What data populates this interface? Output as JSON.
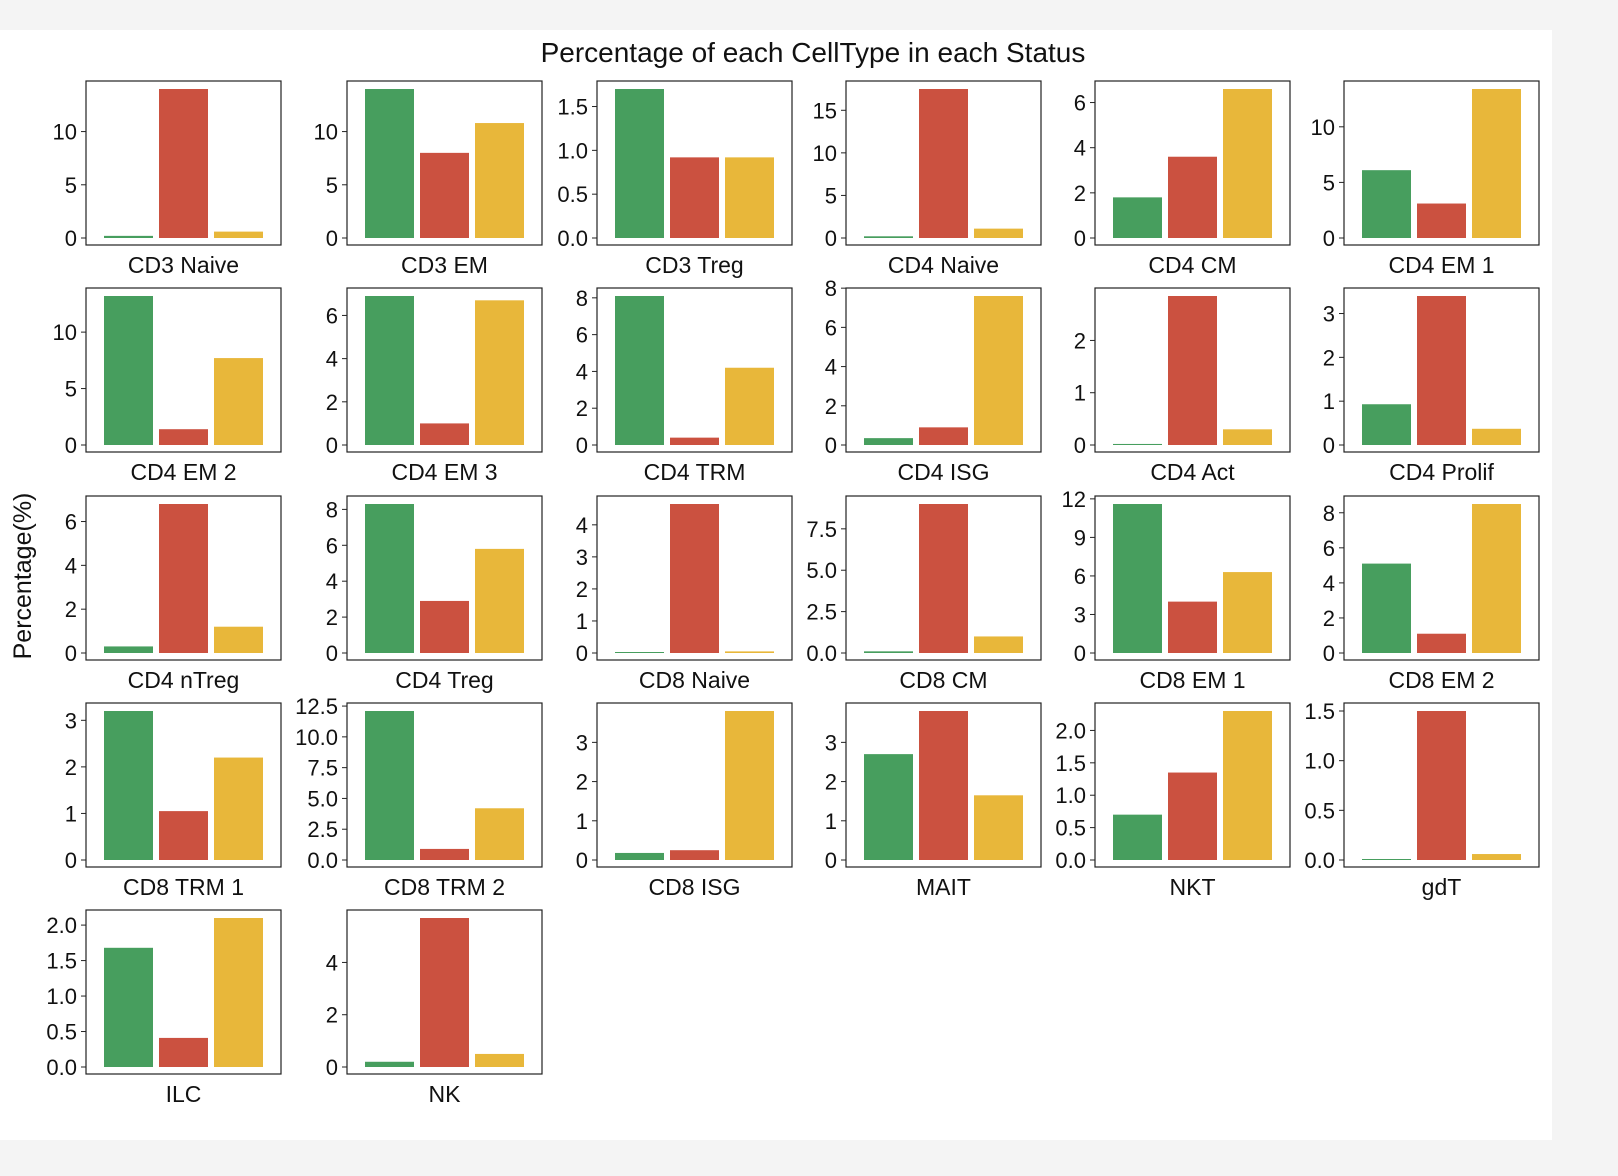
{
  "chart_data": {
    "type": "bar",
    "title": "Percentage of each CellType in each Status",
    "ylabel": "Percentage(%)",
    "series_colors": [
      "#479e5e",
      "#cb5140",
      "#e8b73a"
    ],
    "panels": [
      {
        "label": "CD3 Naive",
        "values": [
          0.2,
          14.0,
          0.6
        ],
        "ylim": [
          0,
          14.0
        ],
        "ticks": [
          "0",
          "5",
          "10"
        ]
      },
      {
        "label": "CD3 EM",
        "values": [
          14.0,
          8.0,
          10.8
        ],
        "ylim": [
          0,
          14.0
        ],
        "ticks": [
          "0",
          "5",
          "10"
        ]
      },
      {
        "label": "CD3 Treg",
        "values": [
          1.7,
          0.92,
          0.92
        ],
        "ylim": [
          0,
          1.7
        ],
        "ticks": [
          "0.0",
          "0.5",
          "1.0",
          "1.5"
        ]
      },
      {
        "label": "CD4 Naive",
        "values": [
          0.2,
          17.5,
          1.1
        ],
        "ylim": [
          0,
          17.5
        ],
        "ticks": [
          "0",
          "5",
          "10",
          "15"
        ]
      },
      {
        "label": "CD4 CM",
        "values": [
          1.8,
          3.6,
          6.6
        ],
        "ylim": [
          0,
          6.6
        ],
        "ticks": [
          "0",
          "2",
          "4",
          "6"
        ]
      },
      {
        "label": "CD4 EM 1",
        "values": [
          6.1,
          3.1,
          13.4
        ],
        "ylim": [
          0,
          13.4
        ],
        "ticks": [
          "0",
          "5",
          "10"
        ]
      },
      {
        "label": "CD4 EM 2",
        "values": [
          13.2,
          1.4,
          7.7
        ],
        "ylim": [
          0,
          13.2
        ],
        "ticks": [
          "0",
          "5",
          "10"
        ]
      },
      {
        "label": "CD4 EM 3",
        "values": [
          6.9,
          1.0,
          6.7
        ],
        "ylim": [
          0,
          6.9
        ],
        "ticks": [
          "0",
          "2",
          "4",
          "6"
        ]
      },
      {
        "label": "CD4 TRM",
        "values": [
          8.1,
          0.4,
          4.2
        ],
        "ylim": [
          0,
          8.1
        ],
        "ticks": [
          "0",
          "2",
          "4",
          "6",
          "8"
        ]
      },
      {
        "label": "CD4 ISG",
        "values": [
          0.35,
          0.9,
          7.6
        ],
        "ylim": [
          0,
          7.6
        ],
        "ticks": [
          "0",
          "2",
          "4",
          "6",
          "8"
        ]
      },
      {
        "label": "CD4 Act",
        "values": [
          0.02,
          2.85,
          0.3
        ],
        "ylim": [
          0,
          2.85
        ],
        "ticks": [
          "0",
          "1",
          "2"
        ]
      },
      {
        "label": "CD4 Prolif",
        "values": [
          0.93,
          3.4,
          0.37
        ],
        "ylim": [
          0,
          3.4
        ],
        "ticks": [
          "0",
          "1",
          "2",
          "3"
        ]
      },
      {
        "label": "CD4 nTreg",
        "values": [
          0.3,
          6.8,
          1.2
        ],
        "ylim": [
          0,
          6.8
        ],
        "ticks": [
          "0",
          "2",
          "4",
          "6"
        ]
      },
      {
        "label": "CD4 Treg",
        "values": [
          8.3,
          2.9,
          5.8
        ],
        "ylim": [
          0,
          8.3
        ],
        "ticks": [
          "0",
          "2",
          "4",
          "6",
          "8"
        ]
      },
      {
        "label": "CD8 Naive",
        "values": [
          0.0,
          4.65,
          0.05
        ],
        "ylim": [
          0,
          4.65
        ],
        "ticks": [
          "0",
          "1",
          "2",
          "3",
          "4"
        ]
      },
      {
        "label": "CD8 CM",
        "values": [
          0.1,
          9.0,
          1.0
        ],
        "ylim": [
          0,
          9.0
        ],
        "ticks": [
          "0.0",
          "2.5",
          "5.0",
          "7.5"
        ]
      },
      {
        "label": "CD8 EM 1",
        "values": [
          11.6,
          4.0,
          6.3
        ],
        "ylim": [
          0,
          11.6
        ],
        "ticks": [
          "0",
          "3",
          "6",
          "9",
          "12"
        ]
      },
      {
        "label": "CD8 EM 2",
        "values": [
          5.1,
          1.1,
          8.5
        ],
        "ylim": [
          0,
          8.5
        ],
        "ticks": [
          "0",
          "2",
          "4",
          "6",
          "8"
        ]
      },
      {
        "label": "CD8 TRM 1",
        "values": [
          3.2,
          1.05,
          2.2
        ],
        "ylim": [
          0,
          3.2
        ],
        "ticks": [
          "0",
          "1",
          "2",
          "3"
        ]
      },
      {
        "label": "CD8 TRM 2",
        "values": [
          12.1,
          0.9,
          4.2
        ],
        "ylim": [
          0,
          12.1
        ],
        "ticks": [
          "0.0",
          "2.5",
          "5.0",
          "7.5",
          "10.0",
          "12.5"
        ]
      },
      {
        "label": "CD8 ISG",
        "values": [
          0.18,
          0.25,
          3.8
        ],
        "ylim": [
          0,
          3.8
        ],
        "ticks": [
          "0",
          "1",
          "2",
          "3"
        ]
      },
      {
        "label": "MAIT",
        "values": [
          2.7,
          3.8,
          1.65
        ],
        "ylim": [
          0,
          3.8
        ],
        "ticks": [
          "0",
          "1",
          "2",
          "3"
        ]
      },
      {
        "label": "NKT",
        "values": [
          0.7,
          1.35,
          2.3
        ],
        "ylim": [
          0,
          2.3
        ],
        "ticks": [
          "0.0",
          "0.5",
          "1.0",
          "1.5",
          "2.0"
        ]
      },
      {
        "label": "gdT",
        "values": [
          0.01,
          1.5,
          0.06
        ],
        "ylim": [
          0,
          1.5
        ],
        "ticks": [
          "0.0",
          "0.5",
          "1.0",
          "1.5"
        ]
      },
      {
        "label": "ILC",
        "values": [
          1.68,
          0.41,
          2.1
        ],
        "ylim": [
          0,
          2.1
        ],
        "ticks": [
          "0.0",
          "0.5",
          "1.0",
          "1.5",
          "2.0"
        ]
      },
      {
        "label": "NK",
        "values": [
          0.2,
          5.7,
          0.5
        ],
        "ylim": [
          0,
          5.7
        ],
        "ticks": [
          "0",
          "2",
          "4"
        ]
      }
    ]
  }
}
